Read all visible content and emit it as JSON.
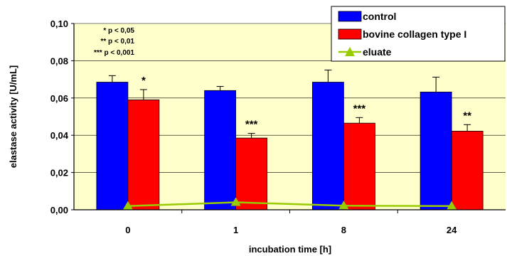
{
  "chart_data": {
    "type": "bar",
    "title": "",
    "xlabel": "incubation time [h]",
    "ylabel": "elastase activity [U/mL]",
    "categories": [
      "0",
      "1",
      "8",
      "24"
    ],
    "ylim": [
      0,
      0.1
    ],
    "yticks": [
      "0,00",
      "0,02",
      "0,04",
      "0,06",
      "0,08",
      "0,10"
    ],
    "series": [
      {
        "name": "control",
        "kind": "bar",
        "color": "#0000ff",
        "values": [
          0.0685,
          0.064,
          0.0685,
          0.0632
        ],
        "errors": [
          0.0035,
          0.0022,
          0.0065,
          0.008
        ]
      },
      {
        "name": "bovine collagen type I",
        "kind": "bar",
        "color": "#ff0000",
        "values": [
          0.059,
          0.0385,
          0.0465,
          0.0422
        ],
        "errors": [
          0.0055,
          0.0025,
          0.003,
          0.0035
        ]
      },
      {
        "name": "eluate",
        "kind": "line",
        "color": "#99cc00",
        "values": [
          0.002,
          0.004,
          0.0022,
          0.002
        ]
      }
    ],
    "significance": [
      "*",
      "***",
      "***",
      "**"
    ],
    "annotations": [
      "* p < 0,05",
      "** p < 0,01",
      "*** p < 0,001"
    ],
    "plot_background": "#ffffcc",
    "grid": "horizontal",
    "legend_position": "top-right"
  }
}
